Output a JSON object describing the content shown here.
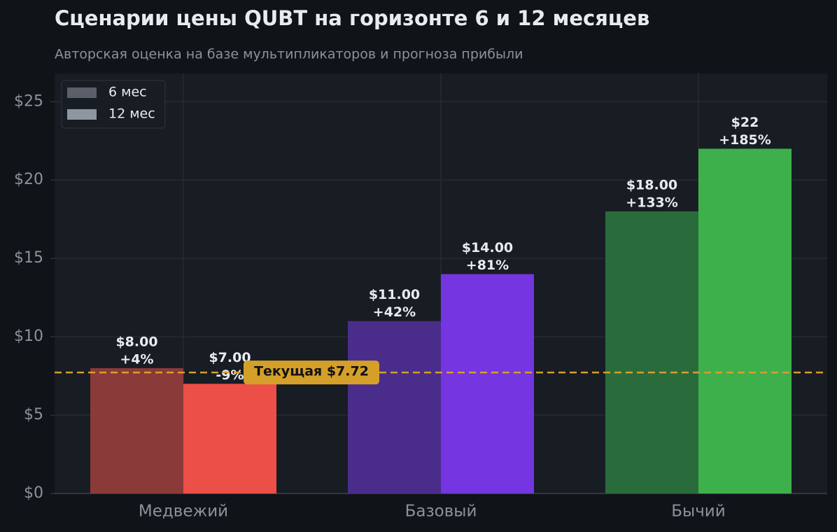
{
  "chart_data": {
    "type": "bar",
    "title": "Сценарии цены QUBT на горизонте 6 и 12 месяцев",
    "subtitle": "Авторская оценка на базе мультипликаторов и прогноза прибыли",
    "categories": [
      "Медвежий",
      "Базовый",
      "Бычий"
    ],
    "series": [
      {
        "name": "6 мес",
        "color": "#5a5f6a",
        "colors": [
          "#8b3a3a",
          "#4a2d8a",
          "#2a6b3c"
        ],
        "values": [
          8,
          11,
          18
        ],
        "value_labels": [
          "$8.00",
          "$11.00",
          "$18.00"
        ],
        "changes": [
          4,
          42,
          133
        ],
        "change_labels": [
          "+4%",
          "+42%",
          "+133%"
        ]
      },
      {
        "name": "12 мес",
        "color": "#8e96a0",
        "colors": [
          "#ec4f47",
          "#7535e0",
          "#3db04c"
        ],
        "values": [
          7,
          14,
          22
        ],
        "value_labels": [
          "$7.00",
          "$14.00",
          "$22"
        ],
        "changes": [
          -9,
          81,
          185
        ],
        "change_labels": [
          "-9%",
          "+81%",
          "+185%"
        ]
      }
    ],
    "current": {
      "value": 7.72,
      "label": "Текущая $7.72",
      "color": "#d4a02a"
    },
    "ylim": [
      0,
      26.8
    ],
    "yticks": [
      {
        "value": 0,
        "label": "$0"
      },
      {
        "value": 5,
        "label": "$5"
      },
      {
        "value": 10,
        "label": "$10"
      },
      {
        "value": 15,
        "label": "$15"
      },
      {
        "value": 20,
        "label": "$20"
      },
      {
        "value": 25,
        "label": "$25"
      }
    ],
    "grid": true,
    "legend": "upper-left"
  }
}
